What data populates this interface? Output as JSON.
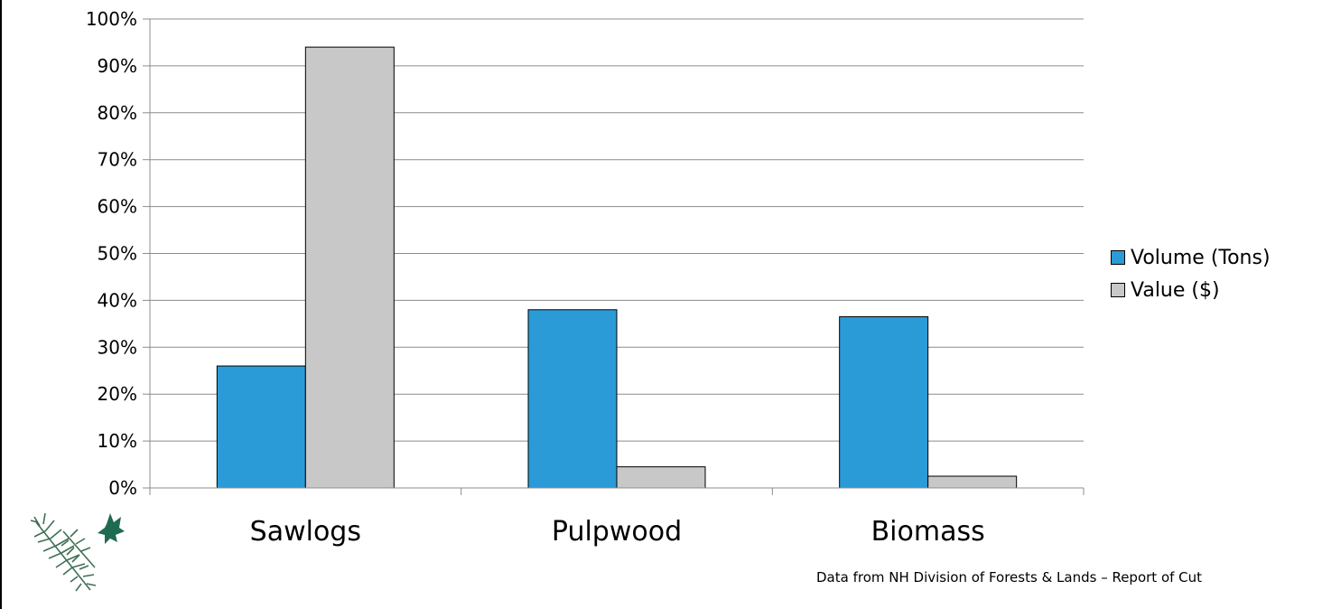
{
  "chart_data": {
    "type": "bar",
    "categories": [
      "Sawlogs",
      "Pulpwood",
      "Biomass"
    ],
    "series": [
      {
        "name": "Volume (Tons)",
        "values": [
          26,
          38,
          36.5
        ]
      },
      {
        "name": "Value ($)",
        "values": [
          94,
          4.5,
          2.5
        ]
      }
    ],
    "ylim": [
      0,
      100
    ],
    "yticks": [
      "0%",
      "10%",
      "20%",
      "30%",
      "40%",
      "50%",
      "60%",
      "70%",
      "80%",
      "90%",
      "100%"
    ],
    "grid": true,
    "legend": "right",
    "colors": [
      "#2b9bd8",
      "#c8c8c8"
    ]
  },
  "source_note": "Data from NH Division of Forests & Lands – Report of Cut",
  "logo": {
    "icon": "pine-branch-maple-leaf-logo"
  }
}
